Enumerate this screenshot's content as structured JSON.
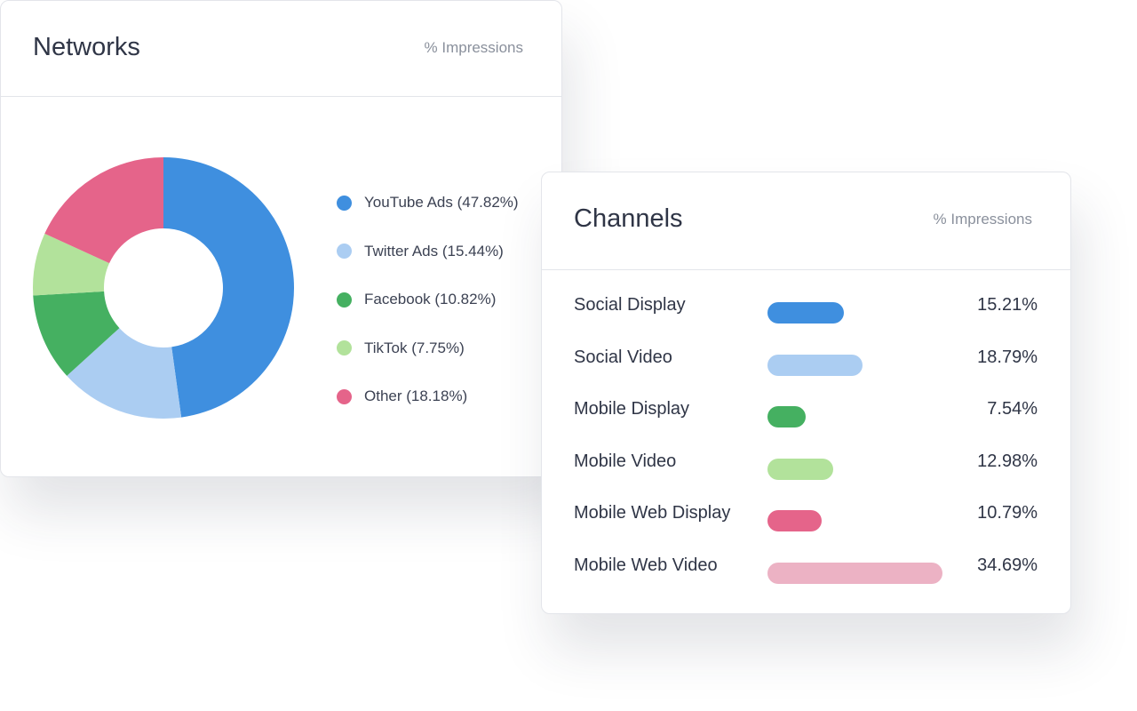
{
  "chart_data": [
    {
      "type": "pie",
      "title": "Networks",
      "subtitle": "% Impressions",
      "donut": true,
      "legend_position": "right",
      "slices": [
        {
          "label": "YouTube Ads (47.82%)",
          "value": 47.82,
          "color": "#3f8fdf"
        },
        {
          "label": "Twitter Ads (15.44%)",
          "value": 15.44,
          "color": "#abcdf2"
        },
        {
          "label": "Facebook (10.82%)",
          "value": 10.82,
          "color": "#45b061"
        },
        {
          "label": "TikTok (7.75%)",
          "value": 7.75,
          "color": "#b2e29b"
        },
        {
          "label": "Other (18.18%)",
          "value": 18.18,
          "color": "#e5648a"
        }
      ]
    },
    {
      "type": "bar",
      "orientation": "horizontal",
      "title": "Channels",
      "subtitle": "% Impressions",
      "xlim": [
        0,
        35
      ],
      "grid": false,
      "rows": [
        {
          "label": "Social Display",
          "value": 15.21,
          "value_label": "15.21%",
          "color": "#3f8fdf"
        },
        {
          "label": "Social Video",
          "value": 18.79,
          "value_label": "18.79%",
          "color": "#abcdf2"
        },
        {
          "label": "Mobile Display",
          "value": 7.54,
          "value_label": "7.54%",
          "color": "#45b061"
        },
        {
          "label": "Mobile Video",
          "value": 12.98,
          "value_label": "12.98%",
          "color": "#b2e29b"
        },
        {
          "label": "Mobile Web Display",
          "value": 10.79,
          "value_label": "10.79%",
          "color": "#e5648a"
        },
        {
          "label": "Mobile Web Video",
          "value": 34.69,
          "value_label": "34.69%",
          "color": "#ecb2c4"
        }
      ]
    }
  ]
}
